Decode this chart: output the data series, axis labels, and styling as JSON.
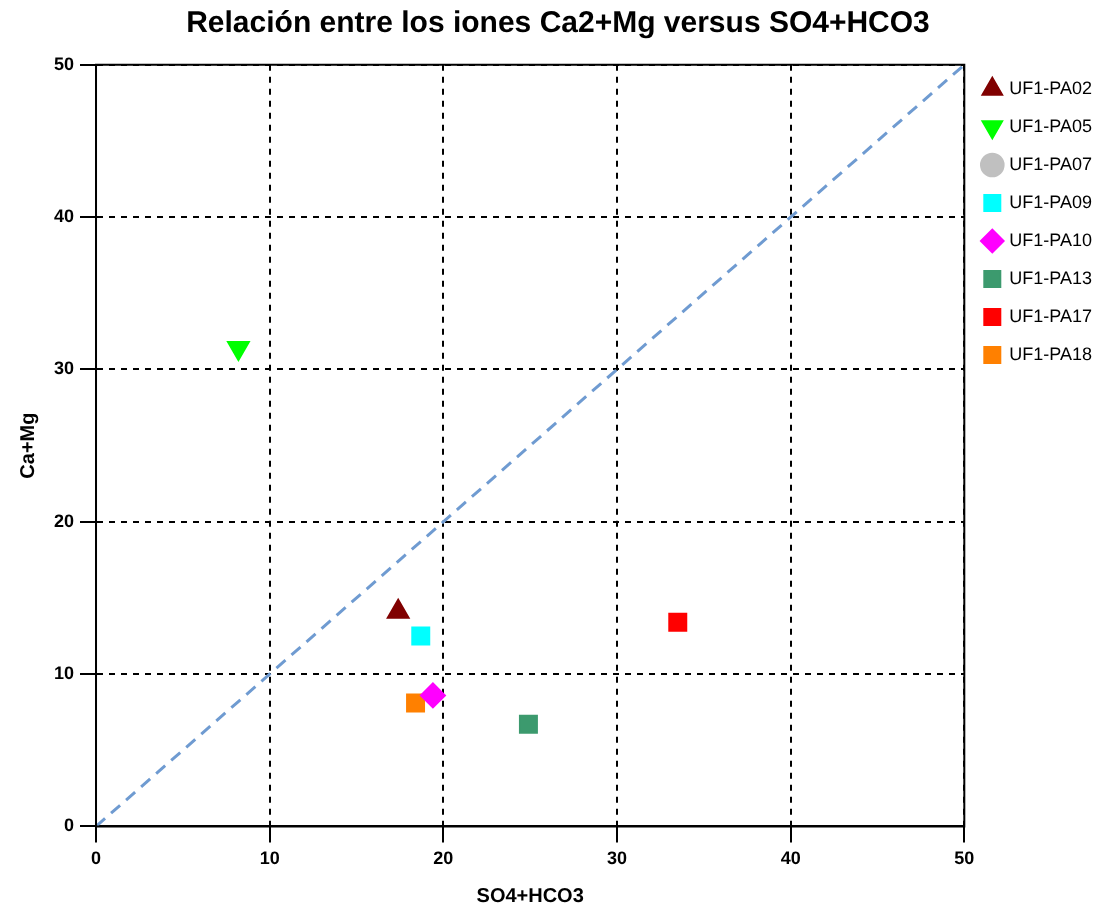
{
  "chart_data": {
    "type": "scatter",
    "title": "Relación entre los iones Ca2+Mg versus SO4+HCO3",
    "xlabel": "SO4+HCO3",
    "ylabel": "Ca+Mg",
    "xlim": [
      0,
      50
    ],
    "xticks": [
      0,
      10,
      20,
      30,
      40,
      50
    ],
    "ylim": [
      0,
      50
    ],
    "yticks": [
      0,
      10,
      20,
      30,
      40,
      50
    ],
    "grid": true,
    "legend": "right",
    "series": [
      {
        "name": "UF1-PA02",
        "color": "#800000",
        "marker": "triangle",
        "x": [
          17.4
        ],
        "values": [
          14.1
        ]
      },
      {
        "name": "UF1-PA05",
        "color": "#00ff00",
        "marker": "triangle_down",
        "x": [
          8.2
        ],
        "values": [
          31.4
        ]
      },
      {
        "name": "UF1-PA07",
        "color": "#c0c0c0",
        "marker": "circle",
        "x": [
          null
        ],
        "values": [
          null
        ]
      },
      {
        "name": "UF1-PA09",
        "color": "#00ffff",
        "marker": "square",
        "x": [
          18.7
        ],
        "values": [
          12.5
        ]
      },
      {
        "name": "UF1-PA10",
        "color": "#ff00ff",
        "marker": "diamond",
        "x": [
          19.4
        ],
        "values": [
          8.6
        ]
      },
      {
        "name": "UF1-PA13",
        "color": "#3c9a6e",
        "marker": "square",
        "x": [
          24.9
        ],
        "values": [
          6.7
        ]
      },
      {
        "name": "UF1-PA17",
        "color": "#ff0000",
        "marker": "square",
        "x": [
          33.5
        ],
        "values": [
          13.4
        ]
      },
      {
        "name": "UF1-PA18",
        "color": "#ff8000",
        "marker": "square",
        "x": [
          18.4
        ],
        "values": [
          8.1
        ]
      },
      {
        "type": "line",
        "color": "#6f9bd1",
        "line_style": "dashed",
        "marker": "none",
        "x": [
          0,
          50
        ],
        "values": [
          0,
          50
        ]
      }
    ]
  }
}
